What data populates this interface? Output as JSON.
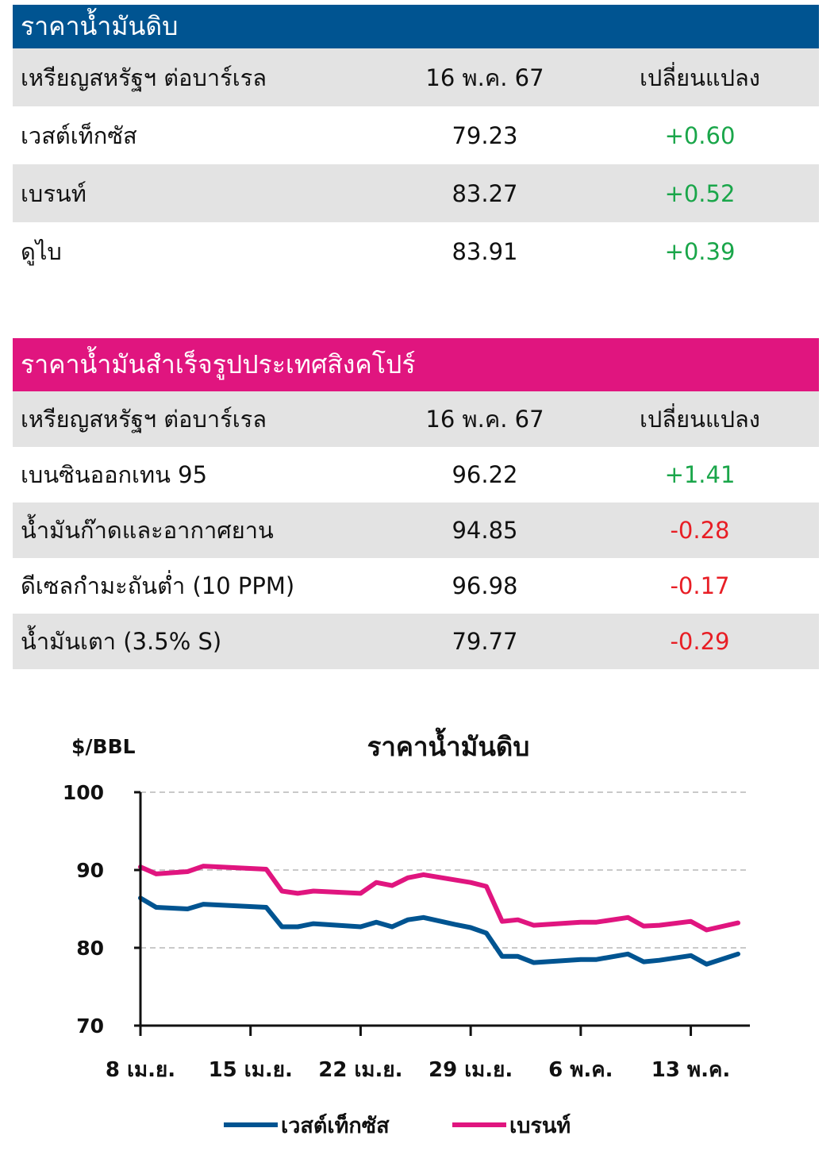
{
  "crude_table": {
    "title": "ราคาน้ำมันดิบ",
    "header": {
      "unit": "เหรียญสหรัฐฯ ต่อบาร์เรล",
      "date": "16 พ.ค. 67",
      "change": "เปลี่ยนแปลง"
    },
    "rows": [
      {
        "name": "เวสต์เท็กซัส",
        "price": "79.23",
        "change": "+0.60",
        "direction": "up"
      },
      {
        "name": "เบรนท์",
        "price": "83.27",
        "change": "+0.52",
        "direction": "up"
      },
      {
        "name": "ดูไบ",
        "price": "83.91",
        "change": "+0.39",
        "direction": "up"
      }
    ]
  },
  "singapore_table": {
    "title": "ราคาน้ำมันสำเร็จรูปประเทศสิงคโปร์",
    "header": {
      "unit": "เหรียญสหรัฐฯ ต่อบาร์เรล",
      "date": "16 พ.ค. 67",
      "change": "เปลี่ยนแปลง"
    },
    "rows": [
      {
        "name": "เบนซินออกเทน 95",
        "price": "96.22",
        "change": "+1.41",
        "direction": "up"
      },
      {
        "name": "น้ำมันก๊าดและอากาศยาน",
        "price": "94.85",
        "change": "-0.28",
        "direction": "down"
      },
      {
        "name": "ดีเซลกำมะถันต่ำ (10 PPM)",
        "price": "96.98",
        "change": "-0.17",
        "direction": "down"
      },
      {
        "name": "น้ำมันเตา (3.5% S)",
        "price": "79.77",
        "change": "-0.29",
        "direction": "down"
      }
    ]
  },
  "colors": {
    "blue": "#005491",
    "magenta": "#e0157f",
    "positive": "#1aa64a",
    "negative": "#e81e25",
    "row_gray": "#e3e3e3"
  },
  "chart_data": {
    "type": "line",
    "title": "ราคาน้ำมันดิบ",
    "ylabel": "$/BBL",
    "ylim": [
      70,
      100
    ],
    "yticks": [
      100,
      90,
      80,
      70
    ],
    "grid": true,
    "legend_position": "bottom",
    "x_tick_labels": [
      "8 เม.ย.",
      "15 เม.ย.",
      "22 เม.ย.",
      "29 เม.ย.",
      "6 พ.ค.",
      "13 พ.ค."
    ],
    "x_tick_index": [
      0,
      7,
      14,
      21,
      28,
      35
    ],
    "x_range": [
      0,
      38
    ],
    "series": [
      {
        "name": "เวสต์เท็กซัส",
        "color": "#005491",
        "points": [
          [
            0,
            86.4
          ],
          [
            1,
            85.2
          ],
          [
            3,
            85.0
          ],
          [
            4,
            85.6
          ],
          [
            8,
            85.2
          ],
          [
            9,
            82.7
          ],
          [
            10,
            82.7
          ],
          [
            11,
            83.1
          ],
          [
            14,
            82.7
          ],
          [
            15,
            83.3
          ],
          [
            16,
            82.7
          ],
          [
            17,
            83.6
          ],
          [
            18,
            83.9
          ],
          [
            20,
            83.0
          ],
          [
            21,
            82.6
          ],
          [
            22,
            81.9
          ],
          [
            23,
            78.9
          ],
          [
            24,
            78.9
          ],
          [
            25,
            78.1
          ],
          [
            28,
            78.5
          ],
          [
            29,
            78.5
          ],
          [
            31,
            79.2
          ],
          [
            32,
            78.2
          ],
          [
            33,
            78.4
          ],
          [
            35,
            79.0
          ],
          [
            36,
            77.9
          ],
          [
            38,
            79.2
          ]
        ]
      },
      {
        "name": "เบรนท์",
        "color": "#e0157f",
        "points": [
          [
            0,
            90.4
          ],
          [
            1,
            89.5
          ],
          [
            3,
            89.8
          ],
          [
            4,
            90.5
          ],
          [
            8,
            90.1
          ],
          [
            9,
            87.3
          ],
          [
            10,
            87.0
          ],
          [
            11,
            87.3
          ],
          [
            14,
            87.0
          ],
          [
            15,
            88.4
          ],
          [
            16,
            88.0
          ],
          [
            17,
            89.0
          ],
          [
            18,
            89.4
          ],
          [
            21,
            88.4
          ],
          [
            22,
            87.9
          ],
          [
            23,
            83.4
          ],
          [
            24,
            83.6
          ],
          [
            25,
            82.9
          ],
          [
            28,
            83.3
          ],
          [
            29,
            83.3
          ],
          [
            31,
            83.9
          ],
          [
            32,
            82.8
          ],
          [
            33,
            82.9
          ],
          [
            35,
            83.4
          ],
          [
            36,
            82.3
          ],
          [
            38,
            83.2
          ]
        ]
      }
    ]
  }
}
